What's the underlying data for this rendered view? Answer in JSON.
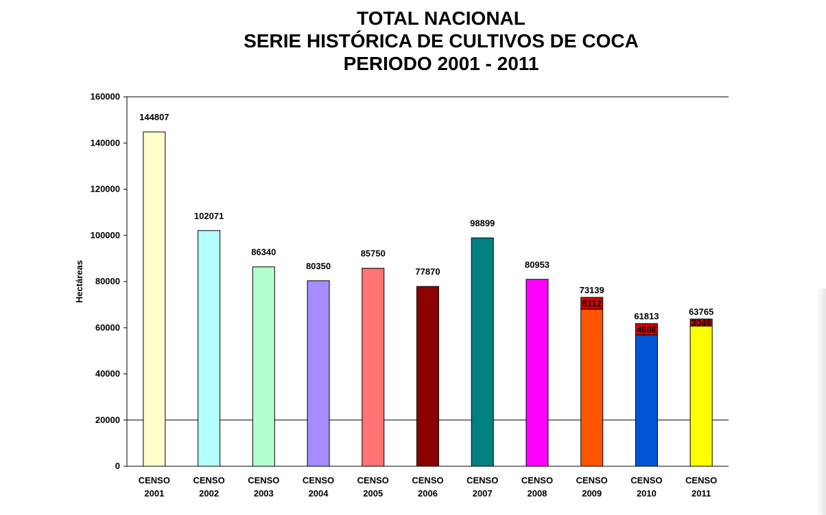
{
  "title_lines": [
    "TOTAL NACIONAL",
    "SERIE HISTÓRICA DE CULTIVOS DE COCA",
    "PERIODO 2001 - 2011"
  ],
  "chart_data": {
    "type": "bar",
    "stacked": true,
    "ylabel": "Hectáreas",
    "xlabel": "",
    "ylim": [
      0,
      160000
    ],
    "yticks": [
      0,
      20000,
      40000,
      60000,
      80000,
      100000,
      120000,
      140000,
      160000
    ],
    "grid_lines_y": [
      20000,
      160000
    ],
    "categories": [
      [
        "CENSO",
        "2001"
      ],
      [
        "CENSO",
        "2002"
      ],
      [
        "CENSO",
        "2003"
      ],
      [
        "CENSO",
        "2004"
      ],
      [
        "CENSO",
        "2005"
      ],
      [
        "CENSO",
        "2006"
      ],
      [
        "CENSO",
        "2007"
      ],
      [
        "CENSO",
        "2008"
      ],
      [
        "CENSO",
        "2009"
      ],
      [
        "CENSO",
        "2010"
      ],
      [
        "CENSO",
        "2011"
      ]
    ],
    "totals": [
      144807,
      102071,
      86340,
      80350,
      85750,
      77870,
      98899,
      80953,
      73139,
      61813,
      63765
    ],
    "top_segments": [
      null,
      null,
      null,
      null,
      null,
      null,
      null,
      null,
      5112,
      4908,
      3049
    ],
    "colors": [
      "#ffffcc",
      "#b3ffff",
      "#b3ffcc",
      "#a68cff",
      "#ff7373",
      "#8b0000",
      "#008080",
      "#ff00ff",
      "#ff5500",
      "#0055d4",
      "#ffff00"
    ],
    "top_segment_color": "#d90000"
  }
}
